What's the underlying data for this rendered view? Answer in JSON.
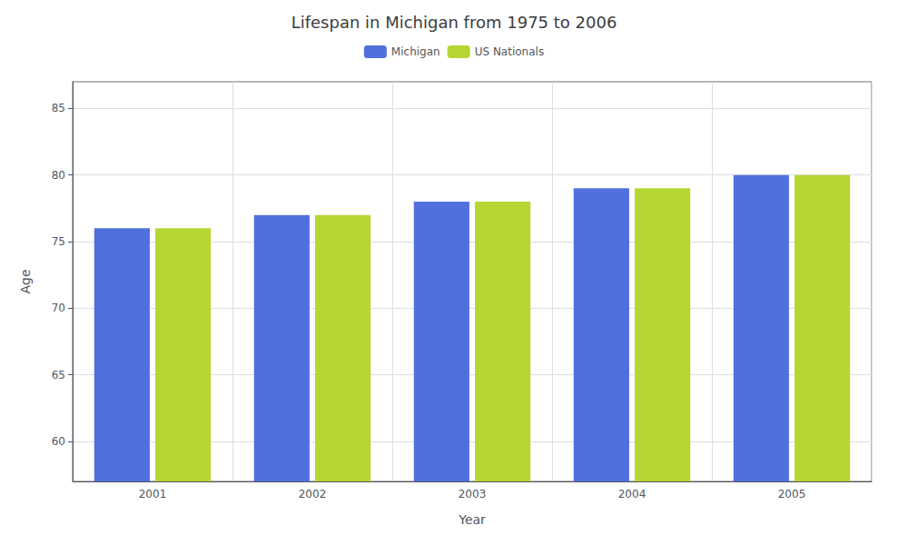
{
  "chart_data": {
    "type": "bar",
    "title": "Lifespan in Michigan from 1975 to 2006",
    "xlabel": "Year",
    "ylabel": "Age",
    "categories": [
      "2001",
      "2002",
      "2003",
      "2004",
      "2005"
    ],
    "series": [
      {
        "name": "Michigan",
        "values": [
          76,
          77,
          78,
          79,
          80
        ]
      },
      {
        "name": "US Nationals",
        "values": [
          76,
          77,
          78,
          79,
          80
        ]
      }
    ],
    "ylim": [
      57,
      87
    ],
    "yticks": [
      60,
      65,
      70,
      75,
      80,
      85
    ],
    "grid": true,
    "legend": "top"
  }
}
